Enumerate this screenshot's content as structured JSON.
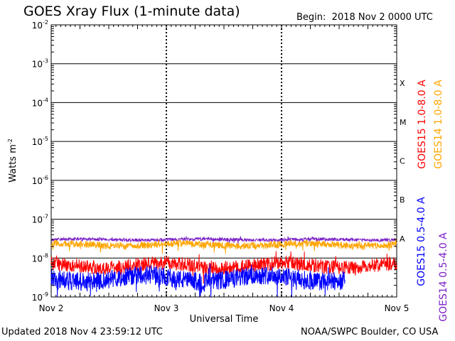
{
  "title": "GOES Xray Flux (1-minute data)",
  "begin_label": "Begin:",
  "begin_value": "2018 Nov 2 0000 UTC",
  "updated": "Updated 2018 Nov  4 23:59:12 UTC",
  "credit": "NOAA/SWPC Boulder, CO USA",
  "chart_data": {
    "type": "line",
    "title": "GOES Xray Flux (1-minute data)",
    "xlabel": "Universal Time",
    "ylabel": "Watts m",
    "ylabel_sup": "-2",
    "yscale": "log",
    "ylim": [
      1e-09,
      0.01
    ],
    "xlim": [
      0,
      3
    ],
    "x_ticks": [
      {
        "value": 0,
        "label": "Nov 2"
      },
      {
        "value": 1,
        "label": "Nov 3"
      },
      {
        "value": 2,
        "label": "Nov 4"
      },
      {
        "value": 3,
        "label": "Nov 5"
      }
    ],
    "y_ticks": [
      {
        "exp": -9,
        "base": "10",
        "sup": "-9"
      },
      {
        "exp": -8,
        "base": "10",
        "sup": "-8"
      },
      {
        "exp": -7,
        "base": "10",
        "sup": "-7"
      },
      {
        "exp": -6,
        "base": "10",
        "sup": "-6"
      },
      {
        "exp": -5,
        "base": "10",
        "sup": "-5"
      },
      {
        "exp": -4,
        "base": "10",
        "sup": "-4"
      },
      {
        "exp": -3,
        "base": "10",
        "sup": "-3"
      },
      {
        "exp": -2,
        "base": "10",
        "sup": "-2"
      }
    ],
    "flare_classes": [
      {
        "label": "A",
        "exp": -8
      },
      {
        "label": "B",
        "exp": -7
      },
      {
        "label": "C",
        "exp": -6
      },
      {
        "label": "M",
        "exp": -5
      },
      {
        "label": "X",
        "exp": -4
      }
    ],
    "grid": true,
    "series": [
      {
        "name": "GOES14 0.5-4.0 A",
        "color": "#7b22c8",
        "level": 3e-08,
        "noise": 0.04,
        "end": 3.0
      },
      {
        "name": "GOES14 1.0-8.0 A",
        "color": "#ffa500",
        "level": 2.2e-08,
        "noise": 0.09,
        "end": 3.0
      },
      {
        "name": "GOES15 1.0-8.0 A",
        "color": "#ff0000",
        "level": 6.5e-09,
        "noise": 0.18,
        "end": 3.0
      },
      {
        "name": "GOES15 0.5-4.0 A",
        "color": "#0000ff",
        "level": 3e-09,
        "noise": 0.24,
        "end": 2.55
      }
    ]
  }
}
